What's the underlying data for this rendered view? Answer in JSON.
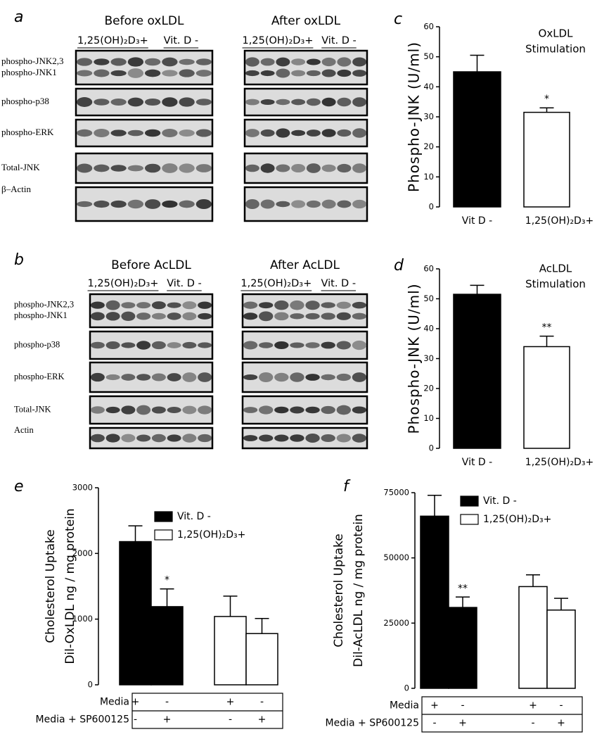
{
  "blots": [
    {
      "panel_label": "a",
      "groups": [
        {
          "title": "Before  oxLDL",
          "conditions": [
            "1,25(OH)₂D₃+",
            "Vit. D -"
          ]
        },
        {
          "title": "After  oxLDL",
          "conditions": [
            "1,25(OH)₂D₃+",
            "Vit. D -"
          ]
        }
      ],
      "rows": [
        {
          "labels": [
            "phospho-JNK2,3",
            "phospho-JNK1"
          ]
        },
        {
          "labels": [
            "phospho-p38"
          ]
        },
        {
          "labels": [
            "phospho-ERK"
          ]
        },
        {
          "labels": [
            "Total-JNK"
          ]
        },
        {
          "labels": [
            "β–Actin"
          ]
        }
      ]
    },
    {
      "panel_label": "b",
      "groups": [
        {
          "title": "Before  AcLDL",
          "conditions": [
            "1,25(OH)₂D₃+",
            "Vit. D -"
          ]
        },
        {
          "title": "After  AcLDL",
          "conditions": [
            "1,25(OH)₂D₃+",
            "Vit. D -"
          ]
        }
      ],
      "rows": [
        {
          "labels": [
            "phospho-JNK2,3",
            "phospho-JNK1"
          ]
        },
        {
          "labels": [
            "phospho-p38"
          ]
        },
        {
          "labels": [
            "phospho-ERK"
          ]
        },
        {
          "labels": [
            "Total-JNK"
          ]
        },
        {
          "labels": [
            "Actin"
          ]
        }
      ]
    }
  ],
  "chart_data": [
    {
      "type": "bar",
      "panel_label": "c",
      "y_label": "Phospho-JNK (U/ml)",
      "annotation": [
        "OxLDL",
        "Stimulation"
      ],
      "categories": [
        "Vit D -",
        "1,25(OH)₂D₃+"
      ],
      "values": [
        45,
        31.5
      ],
      "errors": [
        5.5,
        1.5
      ],
      "significance": [
        null,
        "*"
      ],
      "colors": [
        "#000000",
        "#ffffff"
      ],
      "ylim": [
        0,
        60
      ],
      "yticks": [
        0,
        10,
        20,
        30,
        40,
        50,
        60
      ]
    },
    {
      "type": "bar",
      "panel_label": "d",
      "y_label": "Phospho-JNK (U/ml)",
      "annotation": [
        "AcLDL",
        "Stimulation"
      ],
      "categories": [
        "Vit D -",
        "1,25(OH)₂D₃+"
      ],
      "values": [
        51.5,
        34
      ],
      "errors": [
        3,
        3.5
      ],
      "significance": [
        null,
        "**"
      ],
      "colors": [
        "#000000",
        "#ffffff"
      ],
      "ylim": [
        0,
        60
      ],
      "yticks": [
        0,
        10,
        20,
        30,
        40,
        50,
        60
      ]
    },
    {
      "type": "grouped-bar",
      "panel_label": "e",
      "y_label": [
        "Cholesterol Uptake",
        "Dil-OxLDL ng / mg protein"
      ],
      "categories": [
        null,
        null,
        null,
        null
      ],
      "series": [
        {
          "name": "Vit. D -",
          "color": "#000000",
          "values": [
            2180,
            1190,
            null,
            null
          ],
          "errors": [
            240,
            270,
            null,
            null
          ],
          "significance": [
            null,
            "*",
            null,
            null
          ]
        },
        {
          "name": "1,25(OH)₂D₃+",
          "color": "#ffffff",
          "values": [
            null,
            null,
            1040,
            780
          ],
          "errors": [
            null,
            null,
            310,
            230
          ],
          "significance": [
            null,
            null,
            null,
            null
          ]
        }
      ],
      "ylim": [
        0,
        3000
      ],
      "yticks": [
        0,
        1000,
        2000,
        3000
      ],
      "table": [
        {
          "label": "Media",
          "cells": [
            "+",
            "-",
            "+",
            "-"
          ]
        },
        {
          "label": "Media + SP600125",
          "cells": [
            "-",
            "+",
            "-",
            "+"
          ]
        }
      ]
    },
    {
      "type": "grouped-bar",
      "panel_label": "f",
      "y_label": [
        "Cholesterol Uptake",
        "Dil-AcLDL ng / mg protein"
      ],
      "categories": [
        null,
        null,
        null,
        null
      ],
      "series": [
        {
          "name": "Vit. D -",
          "color": "#000000",
          "values": [
            66000,
            31000,
            null,
            null
          ],
          "errors": [
            8000,
            4000,
            null,
            null
          ],
          "significance": [
            null,
            "**",
            null,
            null
          ]
        },
        {
          "name": "1,25(OH)₂D₃+",
          "color": "#ffffff",
          "values": [
            null,
            null,
            39000,
            30000
          ],
          "errors": [
            null,
            null,
            4500,
            4500
          ],
          "significance": [
            null,
            null,
            null,
            null
          ]
        }
      ],
      "ylim": [
        0,
        75000
      ],
      "yticks": [
        0,
        25000,
        50000,
        75000
      ],
      "table": [
        {
          "label": "Media",
          "cells": [
            "+",
            "-",
            "+",
            "-"
          ]
        },
        {
          "label": "Media + SP600125",
          "cells": [
            "-",
            "+",
            "-",
            "+"
          ]
        }
      ]
    }
  ]
}
